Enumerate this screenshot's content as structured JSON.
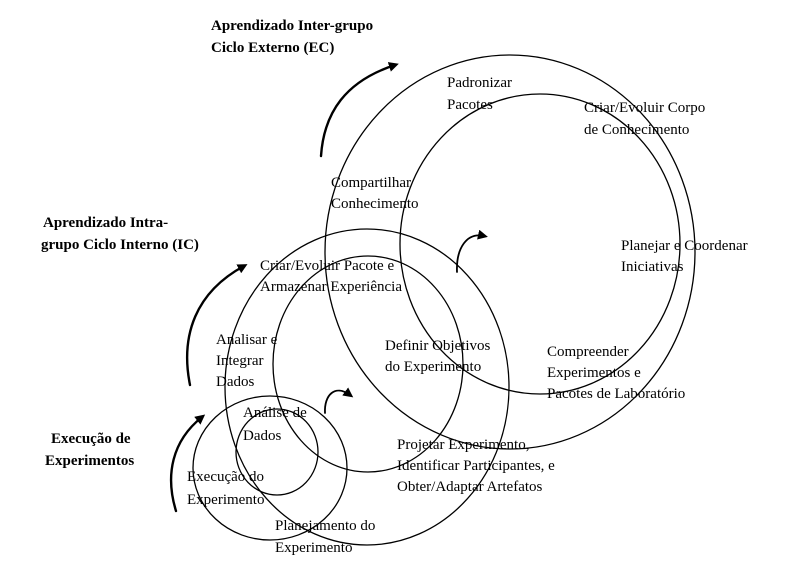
{
  "outer_cycle": {
    "title_line1": "Aprendizado Inter-grupo",
    "title_line2": "Ciclo Externo (EC)",
    "steps": {
      "padronizar_line1": "Padronizar",
      "padronizar_line2": "Pacotes",
      "criar_corpo_line1": "Criar/Evoluir Corpo",
      "criar_corpo_line2": "de Conhecimento",
      "planejar_line1": "Planejar e Coordenar",
      "planejar_line2": "Iniciativas",
      "compreender_line1": "Compreender",
      "compreender_line2": "Experimentos e",
      "compreender_line3": "Pacotes de Laboratório",
      "compartilhar_line1": "Compartilhar",
      "compartilhar_line2": "Conhecimento"
    }
  },
  "inner_cycle": {
    "title_line1": "Aprendizado Intra-",
    "title_line2": "grupo Ciclo Interno (IC)",
    "steps": {
      "criar_pacote_line1": "Criar/Evoluir Pacote e",
      "criar_pacote_line2": "Armazenar Experiência",
      "definir_line1": "Definir Objetivos",
      "definir_line2": "do Experimento",
      "projetar_line1": "Projetar Experimento,",
      "projetar_line2": "Identificar Participantes, e",
      "projetar_line3": "Obter/Adaptar Artefatos",
      "analisar_line1": "Analisar e",
      "analisar_line2": "Integrar",
      "analisar_line3": "Dados"
    }
  },
  "execution_cycle": {
    "title_line1": "Execução de",
    "title_line2": "Experimentos",
    "steps": {
      "analise_line1": "Análise de",
      "analise_line2": "Dados",
      "execucao_line1": "Execução do",
      "execucao_line2": "Experimento",
      "planejamento_line1": "Planejamento do",
      "planejamento_line2": "Experimento"
    }
  }
}
